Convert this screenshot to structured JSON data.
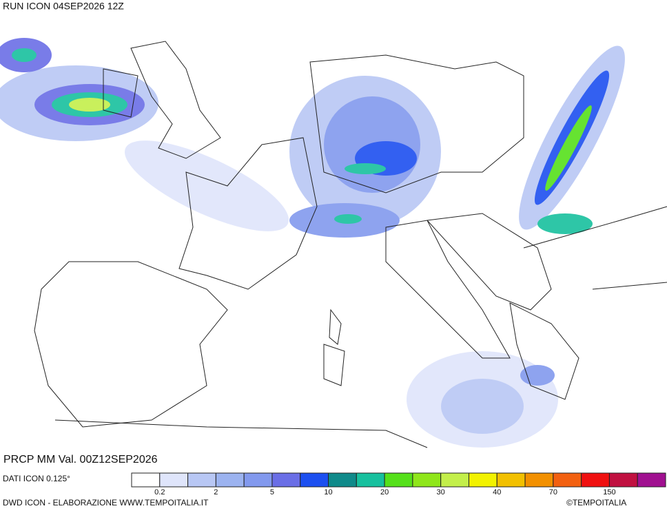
{
  "header": {
    "title": "RUN ICON 04SEP2026 12Z"
  },
  "map": {
    "caption": "PRCP MM Val. 00Z12SEP2026"
  },
  "legend": {
    "source": "DATI ICON 0.125°",
    "colors": [
      "#ffffff",
      "#dfe5fb",
      "#b8c7f4",
      "#9cb3f0",
      "#8299ee",
      "#6a6ee6",
      "#1c4ff0",
      "#0f8a8a",
      "#17c09e",
      "#55e01a",
      "#8fe61a",
      "#c3ef4a",
      "#f2f200",
      "#f2c000",
      "#f29000",
      "#f26010",
      "#f01010",
      "#c01040",
      "#a01090"
    ],
    "labels": [
      "0.2",
      "2",
      "5",
      "10",
      "20",
      "30",
      "40",
      "70",
      "150"
    ]
  },
  "footer": {
    "credit": "DWD ICON - ELABORAZIONE WWW.TEMPOITALIA.IT",
    "brand": "©TEMPOITALIA"
  }
}
